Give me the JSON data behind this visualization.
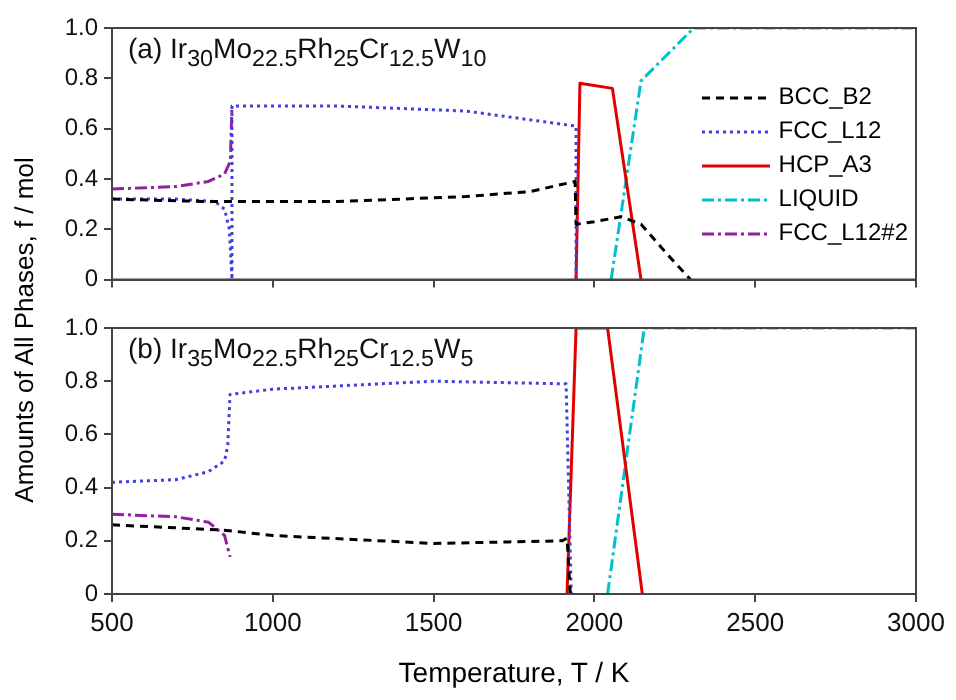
{
  "chart_data": [
    {
      "type": "line",
      "title": "(a) Ir$_{30}$Mo$_{22.5}$Rh$_{25}$Cr$_{12.5}$W$_{10}$",
      "ylabel": "Amounts of All Phases, f / mol",
      "xlim": [
        500,
        3000
      ],
      "xticks": [
        500,
        1000,
        1500,
        2000,
        2500,
        3000
      ],
      "ylim": [
        0,
        1
      ],
      "yticks": [
        0,
        0.2,
        0.4,
        0.6,
        0.8,
        {
          "value": 1,
          "label": "1.0"
        }
      ],
      "tick_labels": "y",
      "grid": false,
      "legend": "right",
      "marker": "none",
      "series": [
        {
          "name": "BCC_B2",
          "color": "#000000",
          "line_style": "dashed",
          "x": [
            500,
            800,
            1200,
            1600,
            1800,
            1940,
            1943,
            2000,
            2083,
            2145,
            2227,
            2299
          ],
          "values": [
            0.32,
            0.31,
            0.31,
            0.33,
            0.35,
            0.39,
            0.22,
            0.23,
            0.25,
            0.22,
            0.1,
            0
          ]
        },
        {
          "name": "FCC_L12",
          "color": "#4040e0",
          "line_style": "dotted",
          "x": [
            500,
            700,
            820,
            850,
            865,
            873,
            873,
            1200,
            1600,
            1943,
            1943
          ],
          "values": [
            0.32,
            0.32,
            0.31,
            0.28,
            0.2,
            0,
            0.69,
            0.69,
            0.67,
            0.61,
            0
          ]
        },
        {
          "name": "HCP_A3",
          "color": "#e00000",
          "line_style": "solid",
          "x": [
            1943,
            1955,
            2056,
            2145
          ],
          "values": [
            0,
            0.78,
            0.76,
            0
          ]
        },
        {
          "name": "LIQUID",
          "color": "#00c0d0",
          "line_style": "dashdot",
          "x": [
            2052,
            2145,
            2309,
            3000
          ],
          "values": [
            0,
            0.79,
            1,
            1
          ]
        },
        {
          "name": "FCC_L12#2",
          "color": "#9020a0",
          "line_style": "dashdot",
          "x": [
            500,
            700,
            800,
            850,
            868,
            873
          ],
          "values": [
            0.36,
            0.37,
            0.39,
            0.42,
            0.47,
            0.69
          ]
        }
      ]
    },
    {
      "type": "line",
      "title": "(b) Ir$_{35}$Mo$_{22.5}$Rh$_{25}$Cr$_{12.5}$W$_{5}$",
      "xlabel": "Temperature, T / K",
      "xlim": [
        500,
        3000
      ],
      "xticks": [
        500,
        1000,
        1500,
        2000,
        2500,
        3000
      ],
      "ylim": [
        0,
        1
      ],
      "yticks": [
        0,
        0.2,
        0.4,
        0.6,
        0.8,
        {
          "value": 1,
          "label": "1.0"
        }
      ],
      "grid": false,
      "marker": "none",
      "series": [
        {
          "color": "#000000",
          "line_style": "dashed",
          "x": [
            500,
            850,
            1000,
            1500,
            1900,
            1915,
            1925
          ],
          "values": [
            0.26,
            0.24,
            0.22,
            0.19,
            0.2,
            0.21,
            0
          ]
        },
        {
          "color": "#4040e0",
          "line_style": "dotted",
          "x": [
            500,
            700,
            800,
            850,
            860,
            867,
            1000,
            1500,
            1912,
            1928
          ],
          "values": [
            0.42,
            0.43,
            0.46,
            0.5,
            0.56,
            0.75,
            0.77,
            0.8,
            0.79,
            0
          ]
        },
        {
          "color": "#e00000",
          "line_style": "solid",
          "x": [
            1915,
            1943,
            2041,
            2149
          ],
          "values": [
            0,
            1,
            1,
            0
          ]
        },
        {
          "color": "#00c0d0",
          "line_style": "dashdot",
          "x": [
            2041,
            2155,
            3000
          ],
          "values": [
            0,
            1,
            1
          ]
        },
        {
          "color": "#9020a0",
          "line_style": "dashdot",
          "x": [
            500,
            700,
            800,
            850,
            867
          ],
          "values": [
            0.3,
            0.29,
            0.27,
            0.22,
            0.14
          ]
        }
      ]
    }
  ]
}
